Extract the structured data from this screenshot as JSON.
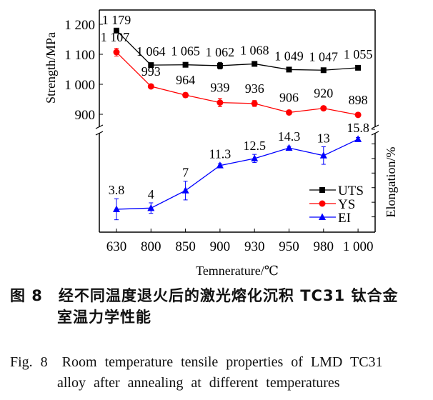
{
  "chart_data": {
    "type": "line",
    "categories": [
      "630",
      "800",
      "850",
      "900",
      "930",
      "950",
      "980",
      "1 000"
    ],
    "xlabel": "Temnerature/℃",
    "ylabel_left": "Strength/MPa",
    "ylabel_right": "Elongation/%",
    "yticks_left": [
      "1 200",
      "1 100",
      "1 000",
      "900"
    ],
    "ylim_left_visible": [
      870,
      1220
    ],
    "right_axis_tick_step": 2.5,
    "axis_break": true,
    "legend_placement": "lower-right",
    "series": [
      {
        "name": "UTS",
        "axis": "left",
        "color": "#000000",
        "marker": "square",
        "values": [
          1179,
          1064,
          1065,
          1062,
          1068,
          1049,
          1047,
          1055
        ],
        "labels": [
          "1 179",
          "1 064",
          "1 065",
          "1 062",
          "1 068",
          "1 049",
          "1 047",
          "1 055"
        ],
        "errors": [
          4,
          4,
          7,
          11,
          4,
          3,
          7,
          4
        ]
      },
      {
        "name": "YS",
        "axis": "left",
        "color": "#ff0000",
        "marker": "circle",
        "values": [
          1107,
          993,
          964,
          939,
          936,
          906,
          920,
          898
        ],
        "labels": [
          "1 107",
          "993",
          "964",
          "939",
          "936",
          "906",
          "920",
          "898"
        ],
        "errors": [
          13,
          3,
          8,
          14,
          10,
          3,
          7,
          7
        ]
      },
      {
        "name": "EI",
        "axis": "right",
        "color": "#0000ff",
        "marker": "triangle",
        "values": [
          3.8,
          4,
          7,
          11.3,
          12.5,
          14.3,
          13,
          15.8
        ],
        "labels": [
          "3.8",
          "4",
          "7",
          "11.3",
          "12.5",
          "14.3",
          "13",
          "15.8"
        ],
        "errors": [
          1.8,
          0.9,
          1.6,
          0.3,
          0.7,
          0.3,
          1.5,
          0.3
        ]
      }
    ]
  },
  "caption": {
    "cn_line1": "图 8　经不同温度退火后的激光熔化沉积 TC31 钛合金",
    "cn_line2": "室温力学性能",
    "en_line1": "Fig. 8　Room temperature tensile properties of LMD TC31",
    "en_line2": "alloy after annealing at different temperatures"
  }
}
